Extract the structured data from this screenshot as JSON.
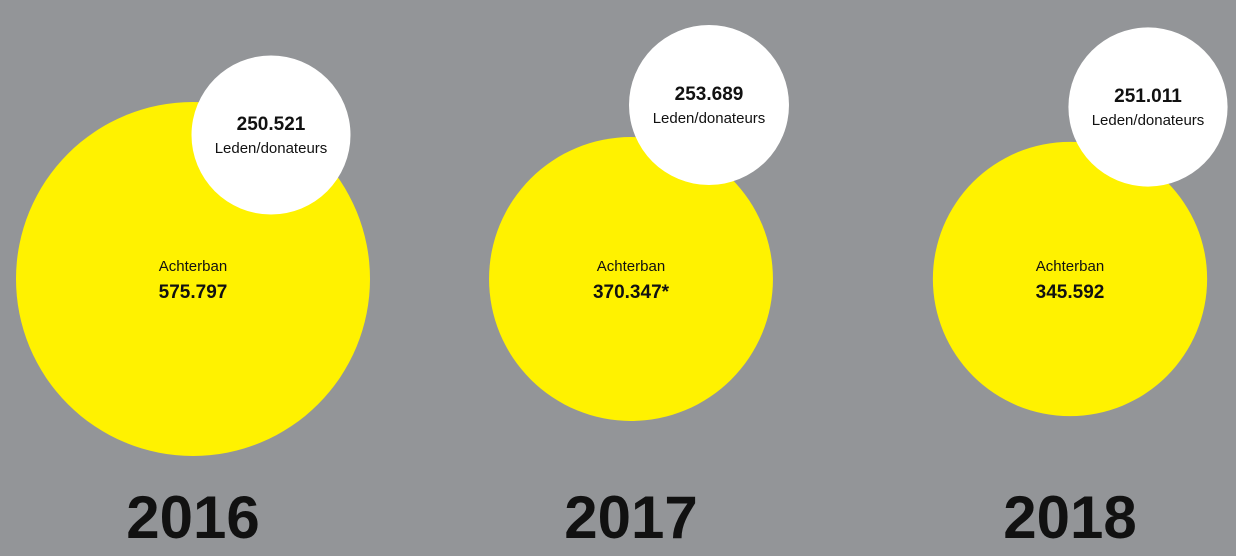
{
  "chart_data": {
    "type": "bubble",
    "categories": [
      "2016",
      "2017",
      "2018"
    ],
    "series": [
      {
        "name": "Achterban",
        "color": "#fff200",
        "values": [
          575797,
          370347,
          345592
        ],
        "value_labels": [
          "575.797",
          "370.347*",
          "345.592"
        ]
      },
      {
        "name": "Leden/donateurs",
        "color": "#ffffff",
        "values": [
          250521,
          253689,
          251011
        ],
        "value_labels": [
          "250.521",
          "253.689",
          "251.011"
        ]
      }
    ]
  }
}
